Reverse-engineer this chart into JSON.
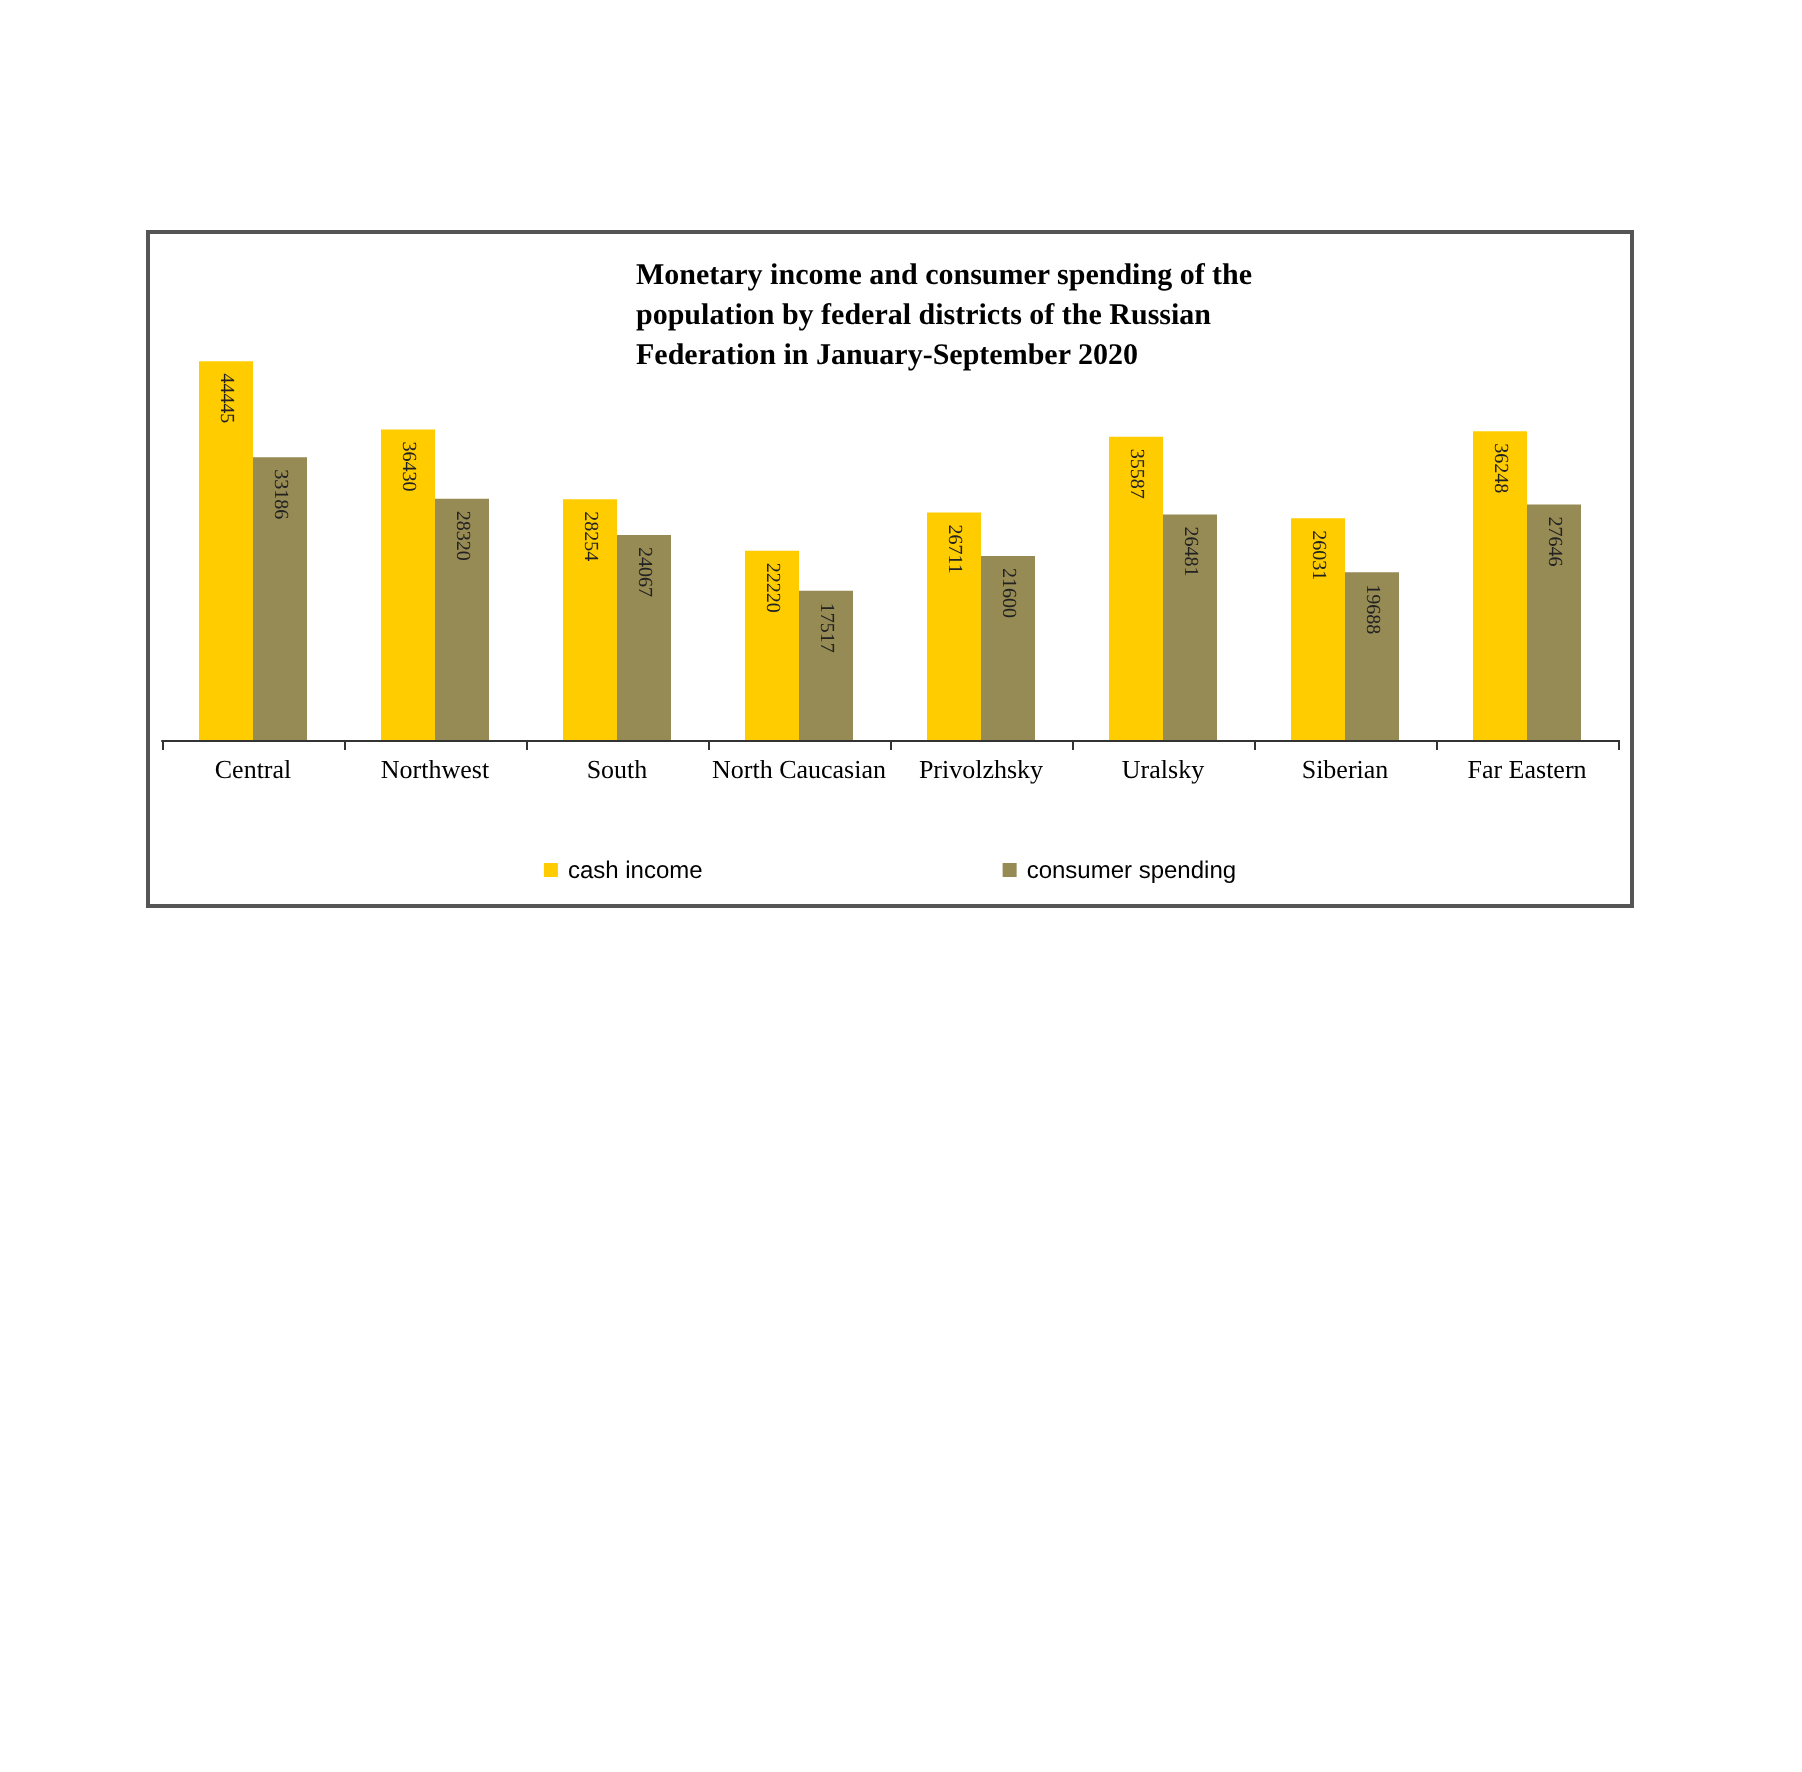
{
  "chart_data": {
    "type": "bar",
    "title": "Monetary income and consumer spending of the population by federal districts of the Russian Federation in January-September 2020",
    "categories": [
      "Central",
      "Northwest",
      "South",
      "North Caucasian",
      "Privolzhsky",
      "Uralsky",
      "Siberian",
      "Far Eastern"
    ],
    "series": [
      {
        "name": "cash income",
        "color": "#ffcc00",
        "values": [
          44445,
          36430,
          28254,
          22220,
          26711,
          35587,
          26031,
          36248
        ]
      },
      {
        "name": "consumer spending",
        "color": "#968a55",
        "values": [
          33186,
          28320,
          24067,
          17517,
          21600,
          26481,
          19688,
          27646
        ]
      }
    ],
    "data_labels": true,
    "legend": "bottom"
  }
}
